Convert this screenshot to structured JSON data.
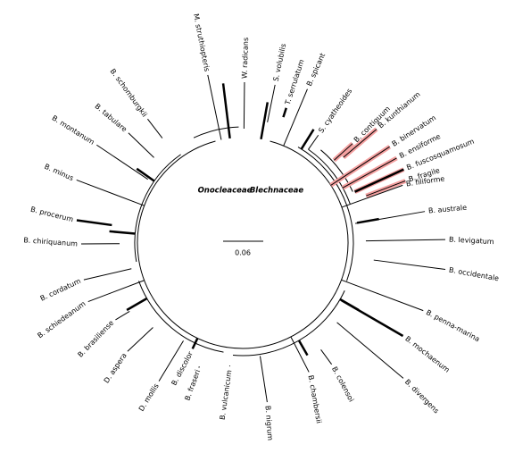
{
  "taxa": [
    "M. struthiopteris",
    "W. radicans",
    "S. volubilis",
    "T. serrulatum",
    "B. spicant",
    "S. cyatheoides",
    "B. contiguum",
    "B. kunthianum",
    "B. binervatum",
    "B. ensiforme",
    "B. fuscosquamosum",
    "B. fragile",
    "B. filiforme",
    "B. australe",
    "B. levigatum",
    "B. occidentale",
    "B. penna-marina",
    "B. mochaenum",
    "B. divergens",
    "B. colensoi",
    "B. chambersii",
    "B. nigrum",
    "B. vulcanicum",
    "B. fraseri",
    "B. discolor",
    "D. mollis",
    "D. aspera",
    "B. brasiliense",
    "B. schiedeanum",
    "B. cordatum",
    "B. chiriquanum",
    "B. procerum",
    "B. minus",
    "B. montanum",
    "B. tabulare",
    "B. schomburgkii"
  ],
  "families": [
    "Onocleaceae",
    "Blechnaceae"
  ],
  "scale_bar": "0.06"
}
